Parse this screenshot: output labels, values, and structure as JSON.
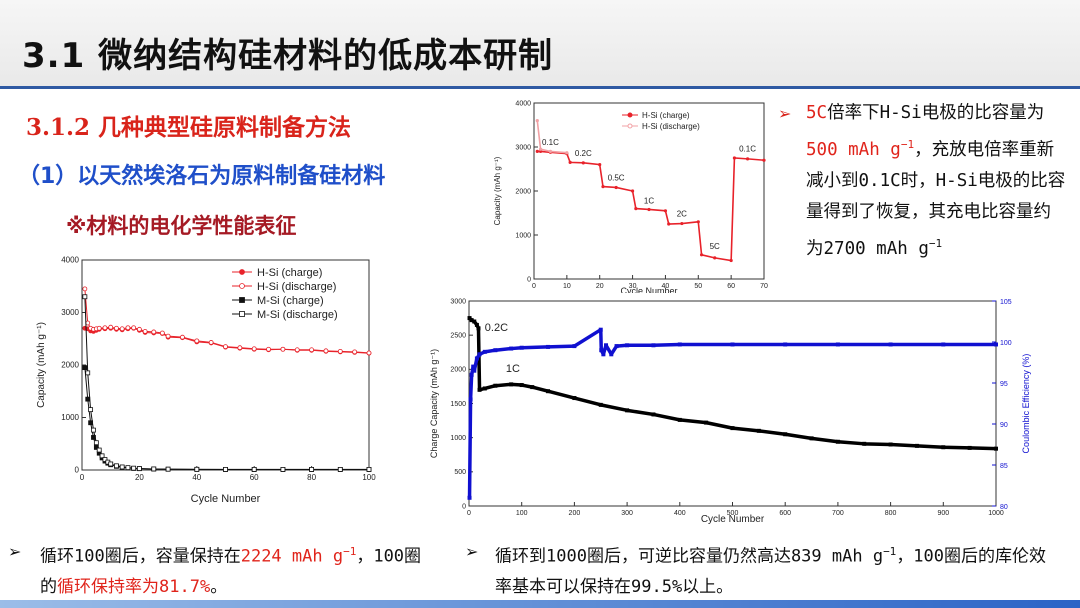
{
  "header": {
    "title": "3.1 微纳结构硅材料的低成本研制"
  },
  "subtitle1": "3.1.2 几种典型硅原料制备方法",
  "subtitle2": "（1）以天然埃洛石为原料制备硅材料",
  "subtitle3": "※材料的电化学性能表征",
  "right_note": {
    "arrow": "➢",
    "p1": "5C",
    "p2": "倍率下H-Si电极的比容量为",
    "p3": "500 mAh g",
    "p3sup": "−1",
    "p4": "，充放电倍率重新减小到0.1C时，H-Si电极的比容量得到了恢复，其充电比容量约为2700 mAh g",
    "p4sup": "−1"
  },
  "bottom_left": {
    "arrow": "➢",
    "p1": "循环100圈后，容量保持在",
    "p2": "2224 mAh g",
    "p2sup": "−1",
    "p3": "，100圈的",
    "p4": "循环保持率为81.7%",
    "p5": "。"
  },
  "bottom_right": {
    "arrow": "➢",
    "p1": "循环到1000圈后，可逆比容量仍然高达839 mAh g",
    "p1sup": "−1",
    "p2": "，100圈后的库伦效率基本可以保持在99.5%以上。"
  },
  "chart_data": [
    {
      "id": "cycling_100",
      "type": "scatter",
      "xlabel": "Cycle Number",
      "ylabel": "Capacity (mAh g⁻¹)",
      "xlim": [
        0,
        100
      ],
      "ylim": [
        0,
        4000
      ],
      "xticks": [
        0,
        20,
        40,
        60,
        80,
        100
      ],
      "yticks": [
        0,
        1000,
        2000,
        3000,
        4000
      ],
      "legend_position": "top-right",
      "series": [
        {
          "name": "H-Si (charge)",
          "color": "#e8222a",
          "marker": "filled-circle",
          "x": [
            1,
            2,
            3,
            4,
            5,
            6,
            8,
            10,
            12,
            14,
            16,
            18,
            20,
            22,
            25,
            28,
            30,
            35,
            40,
            45,
            50,
            55,
            60,
            65,
            70,
            75,
            80,
            85,
            90,
            95,
            100
          ],
          "y": [
            2700,
            2690,
            2650,
            2640,
            2660,
            2680,
            2690,
            2700,
            2680,
            2670,
            2690,
            2700,
            2660,
            2620,
            2610,
            2600,
            2530,
            2520,
            2440,
            2420,
            2340,
            2320,
            2300,
            2290,
            2300,
            2280,
            2280,
            2260,
            2250,
            2240,
            2224
          ]
        },
        {
          "name": "H-Si (discharge)",
          "color": "#e8222a",
          "marker": "open-circle",
          "x": [
            1,
            2,
            3,
            4,
            5,
            6,
            8,
            10,
            12,
            14,
            16,
            18,
            20,
            22,
            25,
            28,
            30,
            35,
            40,
            45,
            50,
            55,
            60,
            65,
            70,
            75,
            80,
            85,
            90,
            95,
            100
          ],
          "y": [
            3450,
            2800,
            2700,
            2680,
            2690,
            2700,
            2710,
            2720,
            2700,
            2690,
            2710,
            2710,
            2680,
            2640,
            2630,
            2610,
            2550,
            2530,
            2460,
            2430,
            2350,
            2330,
            2310,
            2300,
            2300,
            2290,
            2290,
            2270,
            2260,
            2250,
            2230
          ]
        },
        {
          "name": "M-Si (charge)",
          "color": "#111111",
          "marker": "filled-square",
          "x": [
            1,
            2,
            3,
            4,
            5,
            6,
            7,
            8,
            9,
            10,
            12,
            14,
            16,
            18,
            20,
            25,
            30,
            40,
            50,
            60,
            70,
            80,
            90,
            100
          ],
          "y": [
            1950,
            1350,
            900,
            620,
            430,
            320,
            230,
            170,
            130,
            100,
            70,
            50,
            40,
            30,
            25,
            18,
            15,
            12,
            10,
            10,
            10,
            10,
            10,
            10
          ]
        },
        {
          "name": "M-Si (discharge)",
          "color": "#111111",
          "marker": "open-square",
          "x": [
            1,
            2,
            3,
            4,
            5,
            6,
            7,
            8,
            9,
            10,
            12,
            14,
            16,
            18,
            20,
            25,
            30,
            40,
            50,
            60,
            70,
            80,
            90,
            100
          ],
          "y": [
            3300,
            1850,
            1150,
            760,
            520,
            380,
            270,
            200,
            150,
            115,
            80,
            58,
            45,
            35,
            28,
            20,
            16,
            13,
            11,
            11,
            11,
            11,
            11,
            11
          ]
        }
      ]
    },
    {
      "id": "rate_capability",
      "type": "line",
      "xlabel": "Cycle Number",
      "ylabel": "Capacity (mAh g⁻¹)",
      "xlim": [
        0,
        70
      ],
      "ylim": [
        0,
        4000
      ],
      "xticks": [
        0,
        10,
        20,
        30,
        40,
        50,
        60,
        70
      ],
      "yticks": [
        0,
        1000,
        2000,
        3000,
        4000
      ],
      "legend_position": "top-left",
      "annotations": [
        "0.1C",
        "0.2C",
        "0.5C",
        "1C",
        "2C",
        "5C",
        "0.1C"
      ],
      "series": [
        {
          "name": "H-Si (charge)",
          "color": "#e8222a",
          "x": [
            1,
            2,
            5,
            10,
            11,
            15,
            20,
            21,
            25,
            30,
            31,
            35,
            40,
            41,
            45,
            50,
            51,
            55,
            60,
            61,
            65,
            70
          ],
          "y": [
            2900,
            2900,
            2880,
            2850,
            2650,
            2640,
            2600,
            2100,
            2080,
            2000,
            1600,
            1580,
            1550,
            1250,
            1260,
            1300,
            550,
            480,
            420,
            2750,
            2730,
            2700
          ]
        },
        {
          "name": "H-Si (discharge)",
          "color": "#f2a1a5",
          "x": [
            1,
            2,
            5,
            10
          ],
          "y": [
            3600,
            2950,
            2900,
            2870
          ]
        }
      ]
    },
    {
      "id": "long_cycling",
      "type": "scatter",
      "xlabel": "Cycle Number",
      "ylabel": "Charge Capacity (mAh g⁻¹)",
      "y2label": "Coulombic Efficiency (%)",
      "xlim": [
        0,
        1000
      ],
      "ylim": [
        0,
        3000
      ],
      "y2lim": [
        80,
        105
      ],
      "xticks": [
        0,
        100,
        200,
        300,
        400,
        500,
        600,
        700,
        800,
        900,
        1000
      ],
      "yticks": [
        0,
        500,
        1000,
        1500,
        2000,
        2500,
        3000
      ],
      "y2ticks": [
        80,
        85,
        90,
        95,
        100,
        105
      ],
      "annotations": [
        "0.2C",
        "1C"
      ],
      "series": [
        {
          "name": "Charge capacity",
          "color": "#000000",
          "axis": "left",
          "x": [
            1,
            5,
            10,
            15,
            18,
            20,
            30,
            50,
            80,
            100,
            120,
            150,
            200,
            250,
            300,
            350,
            400,
            450,
            500,
            550,
            600,
            650,
            700,
            750,
            800,
            850,
            900,
            950,
            1000
          ],
          "y": [
            2750,
            2720,
            2700,
            2650,
            2600,
            1700,
            1720,
            1760,
            1780,
            1770,
            1740,
            1680,
            1580,
            1480,
            1400,
            1340,
            1260,
            1220,
            1140,
            1100,
            1050,
            990,
            940,
            910,
            900,
            880,
            860,
            850,
            839
          ]
        },
        {
          "name": "Coulombic efficiency",
          "color": "#1010d0",
          "axis": "right",
          "x": [
            1,
            3,
            5,
            8,
            10,
            15,
            20,
            30,
            50,
            80,
            100,
            150,
            200,
            250,
            251,
            255,
            260,
            270,
            280,
            300,
            350,
            400,
            500,
            600,
            700,
            800,
            900,
            1000
          ],
          "y": [
            81,
            93,
            96,
            97,
            96.5,
            98,
            98.5,
            98.8,
            99,
            99.2,
            99.3,
            99.4,
            99.5,
            101.5,
            99,
            98.5,
            99.6,
            98.5,
            99.5,
            99.6,
            99.6,
            99.7,
            99.7,
            99.7,
            99.7,
            99.7,
            99.7,
            99.7
          ]
        }
      ]
    }
  ]
}
